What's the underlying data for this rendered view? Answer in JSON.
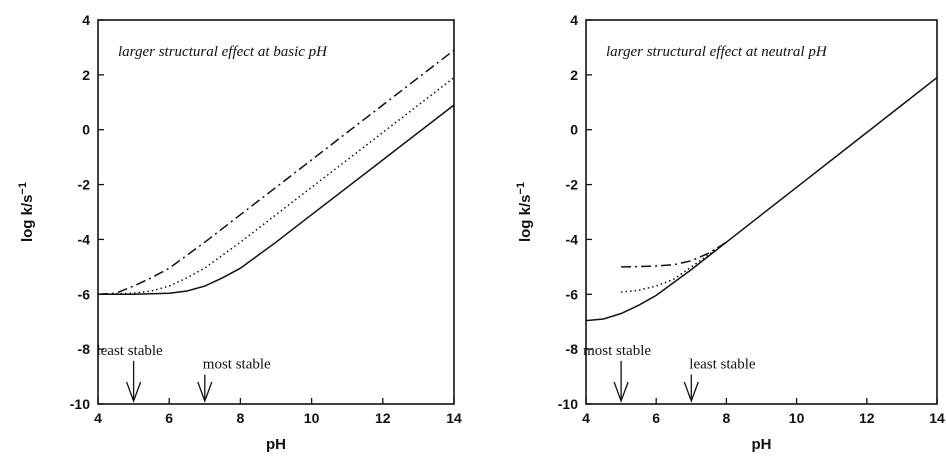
{
  "chart_data": [
    {
      "type": "line",
      "title": "larger structural effect at basic pH",
      "xlabel": "pH",
      "ylabel_main": "log k/s",
      "ylabel_sup": "−1",
      "xlim": [
        4,
        14
      ],
      "ylim": [
        -10,
        4
      ],
      "xticks": [
        4,
        6,
        8,
        10,
        12,
        14
      ],
      "yticks": [
        -10,
        -8,
        -6,
        -4,
        -2,
        0,
        2,
        4
      ],
      "series": [
        {
          "style": "solid",
          "x": [
            4,
            5,
            6,
            6.5,
            7,
            7.5,
            8,
            9,
            10,
            12,
            14
          ],
          "y": [
            -6,
            -6,
            -5.96,
            -5.88,
            -5.7,
            -5.4,
            -5.05,
            -4.1,
            -3.1,
            -1.1,
            0.9
          ]
        },
        {
          "style": "dotted",
          "x": [
            4,
            5,
            5.5,
            6,
            6.5,
            7,
            8,
            10,
            12,
            14
          ],
          "y": [
            -6,
            -5.96,
            -5.88,
            -5.7,
            -5.4,
            -5.04,
            -4.1,
            -2.1,
            -0.1,
            1.9
          ]
        },
        {
          "style": "dashdot",
          "x": [
            4,
            4.5,
            5,
            5.5,
            6,
            7,
            8,
            10,
            12,
            14
          ],
          "y": [
            -6,
            -5.96,
            -5.7,
            -5.4,
            -5.05,
            -4.1,
            -3.1,
            -1.1,
            0.9,
            2.9
          ]
        }
      ],
      "annotations": [
        {
          "text": "least stable",
          "x": 5.0,
          "y": -8.5
        },
        {
          "text": "most stable",
          "x": 7.0,
          "y": -9.0
        }
      ]
    },
    {
      "type": "line",
      "title": "larger structural effect at neutral pH",
      "xlabel": "pH",
      "ylabel_main": "log k/s",
      "ylabel_sup": "−1",
      "xlim": [
        4,
        14
      ],
      "ylim": [
        -10,
        4
      ],
      "xticks": [
        4,
        6,
        8,
        10,
        12,
        14
      ],
      "yticks": [
        -10,
        -8,
        -6,
        -4,
        -2,
        0,
        2,
        4
      ],
      "series": [
        {
          "style": "solid",
          "x": [
            4,
            4.5,
            5,
            5.5,
            6,
            7,
            8,
            10,
            12,
            14
          ],
          "y": [
            -6.96,
            -6.9,
            -6.7,
            -6.4,
            -6.04,
            -5.1,
            -4.1,
            -2.1,
            -0.1,
            1.9
          ]
        },
        {
          "style": "dotted",
          "x": [
            5,
            5.5,
            6,
            6.5,
            7,
            7.5,
            8
          ],
          "y": [
            -5.92,
            -5.85,
            -5.7,
            -5.45,
            -5.0,
            -4.55,
            -4.1
          ]
        },
        {
          "style": "dashdot",
          "x": [
            5,
            5.5,
            6,
            6.5,
            7,
            7.5,
            8
          ],
          "y": [
            -5.0,
            -4.99,
            -4.97,
            -4.92,
            -4.78,
            -4.5,
            -4.1
          ]
        }
      ],
      "annotations": [
        {
          "text": "most stable",
          "x": 5.0,
          "y": -8.5
        },
        {
          "text": "least stable",
          "x": 7.0,
          "y": -9.0
        }
      ]
    }
  ]
}
